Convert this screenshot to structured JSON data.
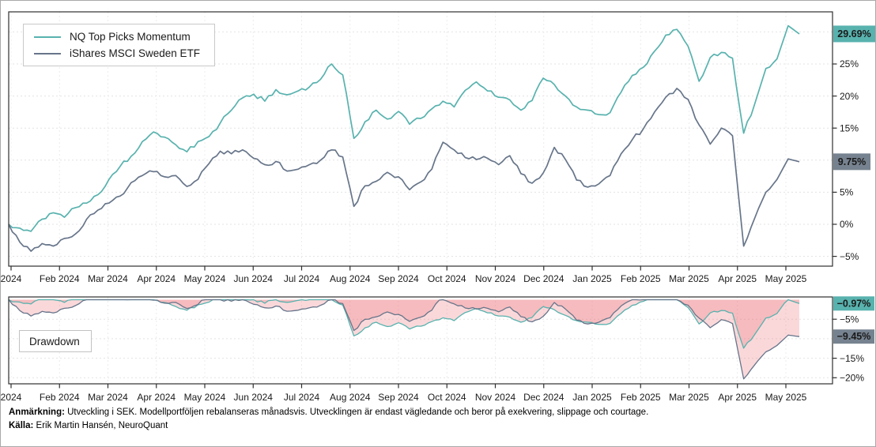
{
  "colors": {
    "nq_teal": "#58b2ae",
    "etf_slate": "#67758a",
    "etf_badge": "#76828f",
    "drawdown_fill": "rgba(235,105,112,0.26)",
    "axis": "#2e2e2e",
    "grid": "#e3e3e3",
    "grid_vertical": "#ececec"
  },
  "chart_data": [
    {
      "type": "line",
      "panel": "performance",
      "y_unit": "percent",
      "x_range": [
        "Jan 2024",
        "May 2025"
      ],
      "x_tick_labels": [
        "2024",
        "Feb 2024",
        "Mar 2024",
        "Apr 2024",
        "May 2024",
        "Jun 2024",
        "Jul 2024",
        "Aug 2024",
        "Sep 2024",
        "Oct 2024",
        "Nov 2024",
        "Dec 2024",
        "Jan 2025",
        "Feb 2025",
        "Mar 2025",
        "Apr 2025",
        "May 2025"
      ],
      "y_ticks": [
        {
          "v": 25,
          "label": "25%"
        },
        {
          "v": 20,
          "label": "20%"
        },
        {
          "v": 15,
          "label": "15%"
        },
        {
          "v": 5,
          "label": "5%"
        },
        {
          "v": 0,
          "label": "0%"
        },
        {
          "v": -5,
          "label": "−5%"
        }
      ],
      "y_gridlines": [
        30,
        25,
        20,
        15,
        10,
        5,
        0,
        -5
      ],
      "ylim": [
        -6.7,
        33
      ],
      "series": [
        {
          "name": "NQ Top Picks Momentum",
          "color": "#58b2ae",
          "badge_color": "#58b2ae",
          "end_badge": "29.69%",
          "values": [
            0.0,
            -0.6,
            -1.1,
            0.8,
            1.8,
            1.1,
            2.6,
            3.3,
            4.6,
            7.0,
            9.0,
            10.6,
            12.9,
            14.4,
            13.6,
            12.4,
            11.3,
            12.9,
            13.7,
            15.8,
            17.8,
            19.7,
            20.3,
            19.2,
            21.0,
            20.2,
            20.8,
            21.4,
            22.6,
            25.0,
            23.3,
            13.4,
            16.0,
            17.8,
            16.4,
            17.6,
            15.6,
            16.5,
            18.0,
            19.2,
            18.3,
            20.9,
            22.2,
            20.8,
            19.8,
            19.4,
            17.8,
            19.3,
            22.8,
            21.8,
            20.0,
            18.3,
            17.8,
            17.1,
            17.4,
            20.6,
            23.2,
            24.5,
            27.0,
            29.5,
            30.4,
            27.8,
            22.3,
            26.0,
            26.8,
            25.9,
            14.2,
            18.8,
            24.3,
            25.8,
            30.96,
            29.69
          ]
        },
        {
          "name": "iShares MSCI Sweden ETF",
          "color": "#67758a",
          "badge_color": "#76828f",
          "end_badge": "9.75%",
          "values": [
            0.0,
            -2.8,
            -4.2,
            -3.0,
            -3.4,
            -2.2,
            -1.5,
            0.8,
            2.2,
            3.3,
            4.4,
            6.5,
            7.6,
            8.2,
            7.4,
            7.6,
            5.9,
            7.0,
            9.5,
            11.4,
            11.0,
            11.6,
            10.3,
            9.3,
            9.8,
            8.3,
            8.6,
            9.3,
            10.0,
            11.6,
            10.5,
            2.8,
            6.0,
            6.7,
            8.1,
            7.4,
            5.4,
            6.6,
            8.6,
            12.8,
            11.6,
            10.4,
            10.1,
            10.3,
            9.3,
            10.7,
            7.9,
            6.4,
            8.0,
            12.0,
            10.1,
            6.9,
            5.8,
            6.3,
            7.6,
            11.0,
            13.2,
            14.9,
            17.5,
            19.8,
            21.2,
            19.5,
            15.5,
            12.5,
            15.0,
            13.8,
            -3.4,
            1.0,
            5.0,
            7.0,
            10.2,
            9.75
          ]
        }
      ]
    },
    {
      "type": "area",
      "panel": "drawdown",
      "label": "Drawdown",
      "derivation": "drawdown = value relative to running peak of each performance series",
      "y_ticks": [
        {
          "v": -5,
          "label": "−5%"
        },
        {
          "v": -15,
          "label": "−15%"
        },
        {
          "v": -20,
          "label": "−20%"
        }
      ],
      "y_gridlines": [
        -5,
        -10,
        -15,
        -20
      ],
      "ylim": [
        -22,
        0.5
      ],
      "fill_color": "rgba(235,105,112,0.26)",
      "end_badges": [
        {
          "series": "NQ Top Picks Momentum",
          "text": "−0.97%",
          "color": "#58b2ae"
        },
        {
          "series": "iShares MSCI Sweden ETF",
          "text": "−9.45%",
          "color": "#76828f"
        }
      ]
    }
  ],
  "footer": {
    "note_label": "Anmärkning:",
    "note": "Utveckling i SEK. Modellportföljen rebalanseras månadsvis. Utvecklingen är endast vägledande och beror på exekvering, slippage och courtage.",
    "source_label": "Källa:",
    "source": "Erik Martin Hansén, NeuroQuant"
  }
}
